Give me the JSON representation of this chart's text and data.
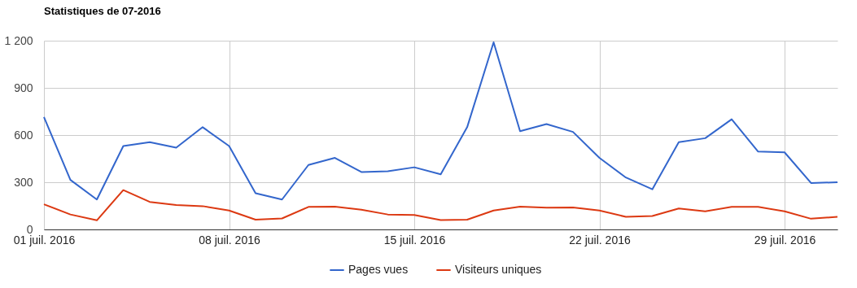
{
  "chart_data": {
    "type": "line",
    "title": "Statistiques de 07-2016",
    "x": [
      "2016-07-01",
      "2016-07-02",
      "2016-07-03",
      "2016-07-04",
      "2016-07-05",
      "2016-07-06",
      "2016-07-07",
      "2016-07-08",
      "2016-07-09",
      "2016-07-10",
      "2016-07-11",
      "2016-07-12",
      "2016-07-13",
      "2016-07-14",
      "2016-07-15",
      "2016-07-16",
      "2016-07-17",
      "2016-07-18",
      "2016-07-19",
      "2016-07-20",
      "2016-07-21",
      "2016-07-22",
      "2016-07-23",
      "2016-07-24",
      "2016-07-25",
      "2016-07-26",
      "2016-07-27",
      "2016-07-28",
      "2016-07-29",
      "2016-07-30",
      "2016-07-31"
    ],
    "series": [
      {
        "name": "Pages vues",
        "color": "#3366cc",
        "values": [
          715,
          315,
          190,
          530,
          555,
          520,
          650,
          530,
          230,
          190,
          410,
          455,
          365,
          370,
          395,
          350,
          650,
          1190,
          625,
          670,
          620,
          455,
          330,
          255,
          555,
          580,
          700,
          495,
          490,
          295,
          300
        ]
      },
      {
        "name": "Visiteurs uniques",
        "color": "#dc3912",
        "values": [
          160,
          95,
          58,
          250,
          175,
          155,
          148,
          120,
          62,
          70,
          143,
          145,
          125,
          95,
          92,
          60,
          62,
          120,
          145,
          138,
          140,
          120,
          80,
          85,
          133,
          115,
          143,
          143,
          115,
          68,
          80
        ]
      }
    ],
    "xlim": [
      "2016-07-01",
      "2016-07-31"
    ],
    "xticks": [
      {
        "value": "2016-07-01",
        "label": "01 juil. 2016"
      },
      {
        "value": "2016-07-08",
        "label": "08 juil. 2016"
      },
      {
        "value": "2016-07-15",
        "label": "15 juil. 2016"
      },
      {
        "value": "2016-07-22",
        "label": "22 juil. 2016"
      },
      {
        "value": "2016-07-29",
        "label": "29 juil. 2016"
      }
    ],
    "ylim": [
      0,
      1200
    ],
    "yticks": [
      0,
      300,
      600,
      900,
      {
        "value": 1200,
        "label": "1 200"
      }
    ],
    "grid": true,
    "legend": "bottom",
    "line_style": "solid"
  }
}
